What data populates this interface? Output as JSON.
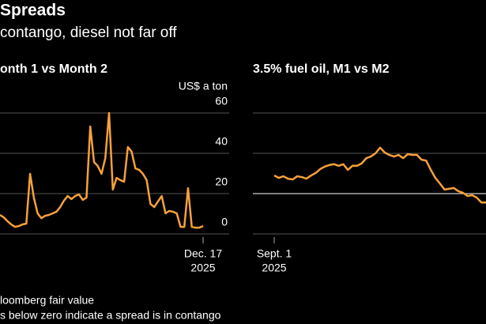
{
  "title": "Spreads",
  "subtitle": "contango, diesel not far off",
  "notes": [
    "loomberg fair value",
    "s below zero indicate a spread is in contango"
  ],
  "chart_data": [
    {
      "type": "line",
      "title": "onth 1 vs Month 2",
      "y_label": "US$ a ton",
      "color": "#f7a13a",
      "ylim": [
        0,
        60
      ],
      "yticks": [
        0,
        20,
        40,
        60
      ],
      "xticks": [
        {
          "value": 54,
          "label": "Dec. 17"
        }
      ],
      "xtick_sublabels": [
        "2025"
      ],
      "values": [
        9.4,
        8.2,
        6.3,
        4.7,
        3.5,
        3.9,
        4.7,
        5.1,
        29.8,
        18,
        10.2,
        7.8,
        9,
        9.4,
        10.2,
        11,
        13.3,
        16.5,
        18.8,
        17.3,
        18.8,
        19.6,
        16.9,
        18,
        53.3,
        35.7,
        33.7,
        29.8,
        37.6,
        60,
        22,
        27.8,
        26.7,
        25.9,
        43.1,
        40.8,
        32.5,
        31.8,
        29.8,
        26.7,
        14.9,
        13.3,
        16.1,
        18.8,
        10.2,
        11.4,
        11,
        10.2,
        3.5,
        3.5,
        22.7,
        3.5,
        3.1,
        3.1,
        3.9
      ]
    },
    {
      "type": "line",
      "title": "3.5% fuel oil, M1 vs M2",
      "color": "#f7a13a",
      "ylim": [
        -1,
        2
      ],
      "xticks": [
        {
          "value": 0,
          "label": "Sept. 1"
        }
      ],
      "xtick_sublabels": [
        "2025"
      ],
      "values": [
        0.45,
        0.39,
        0.43,
        0.37,
        0.35,
        0.43,
        0.41,
        0.37,
        0.45,
        0.51,
        0.61,
        0.67,
        0.71,
        0.73,
        0.69,
        0.73,
        0.59,
        0.69,
        0.69,
        0.75,
        0.88,
        0.92,
        1.0,
        1.14,
        1.02,
        0.96,
        0.92,
        0.96,
        0.88,
        0.98,
        0.96,
        0.96,
        0.84,
        0.82,
        0.59,
        0.39,
        0.25,
        0.1,
        0.12,
        0.14,
        0.06,
        0.02,
        -0.06,
        -0.04,
        -0.1,
        -0.22,
        -0.22
      ]
    }
  ]
}
